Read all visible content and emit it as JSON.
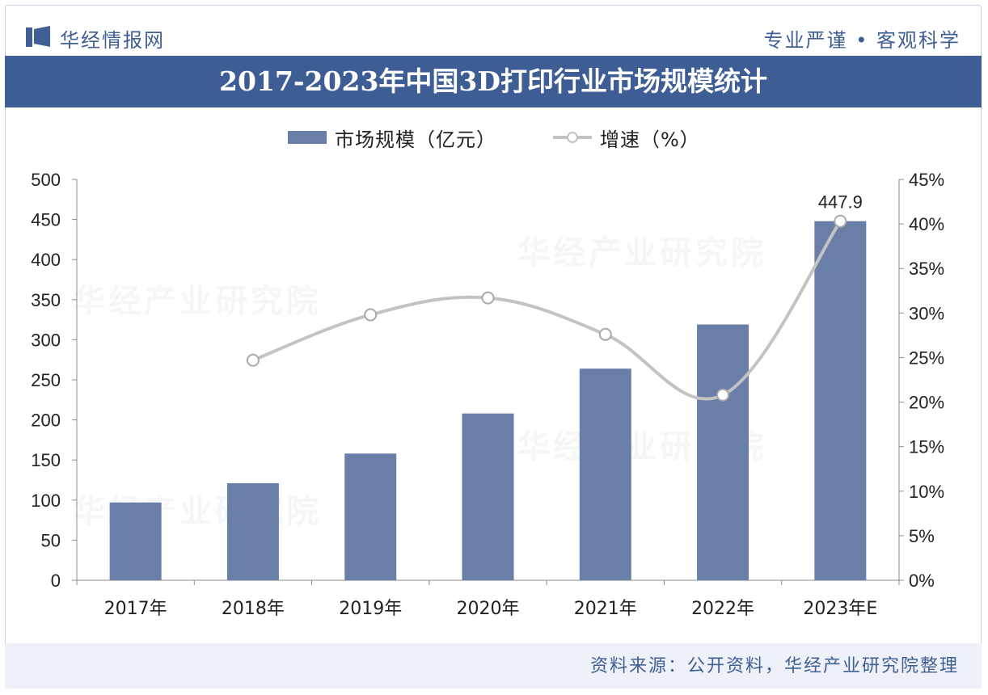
{
  "header": {
    "brand": "华经情报网",
    "slogan": "专业严谨 • 客观科学",
    "title": "2017-2023年中国3D打印行业市场规模统计"
  },
  "legend": {
    "bar_label": "市场规模（亿元）",
    "line_label": "增速（%）"
  },
  "footer": {
    "source": "资料来源：公开资料，华经产业研究院整理"
  },
  "watermark": "华经产业研究院",
  "colors": {
    "bar": "#6a7fa8",
    "line": "#c3c3c3",
    "title_bg": "#3e5d95",
    "brand": "#3f5f95"
  },
  "chart_data": {
    "type": "bar",
    "categories": [
      "2017年",
      "2018年",
      "2019年",
      "2020年",
      "2021年",
      "2022年",
      "2023年E"
    ],
    "series": [
      {
        "name": "市场规模（亿元）",
        "type": "bar",
        "axis": "left",
        "values": [
          97,
          121,
          158,
          208,
          264,
          319,
          447.9
        ]
      },
      {
        "name": "增速（%）",
        "type": "line",
        "axis": "right",
        "values": [
          null,
          24.7,
          29.8,
          31.7,
          27.6,
          20.8,
          40.3
        ]
      }
    ],
    "data_labels": [
      {
        "category": "2023年E",
        "series": "市场规模（亿元）",
        "text": "447.9"
      }
    ],
    "ylim": [
      0,
      500
    ],
    "yticks": [
      "0",
      "50",
      "100",
      "150",
      "200",
      "250",
      "300",
      "350",
      "400",
      "450",
      "500"
    ],
    "y2lim": [
      0,
      45
    ],
    "y2ticks": [
      "0%",
      "5%",
      "10%",
      "15%",
      "20%",
      "25%",
      "30%",
      "35%",
      "40%",
      "45%"
    ],
    "legend_position": "top-center",
    "grid": false
  }
}
